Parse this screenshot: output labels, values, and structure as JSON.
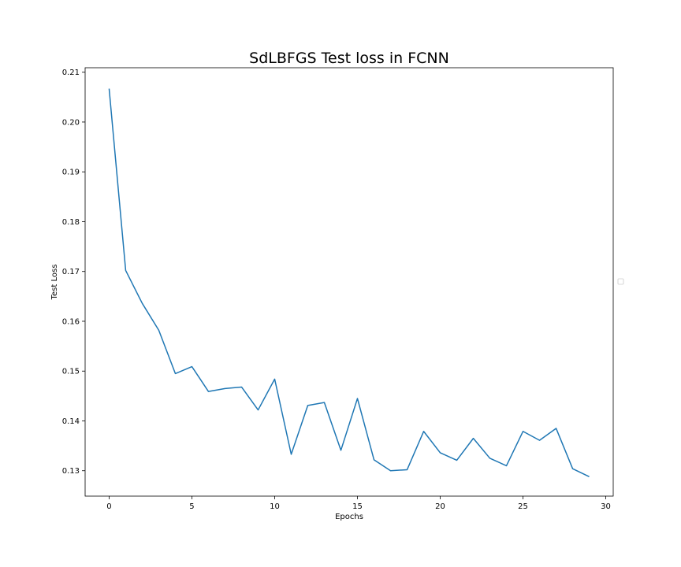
{
  "chart_data": {
    "type": "line",
    "title": "SdLBFGS Test loss in FCNN",
    "xlabel": "Epochs",
    "ylabel": "Test Loss",
    "xlim": [
      -1.45,
      30.45
    ],
    "ylim": [
      0.1249,
      0.2109
    ],
    "x_ticks": [
      0,
      5,
      10,
      15,
      20,
      25,
      30
    ],
    "x_tick_labels": [
      "0",
      "5",
      "10",
      "15",
      "20",
      "25",
      "30"
    ],
    "y_ticks": [
      0.13,
      0.14,
      0.15,
      0.16,
      0.17,
      0.18,
      0.19,
      0.2,
      0.21
    ],
    "y_tick_labels": [
      "0.13",
      "0.14",
      "0.15",
      "0.16",
      "0.17",
      "0.18",
      "0.19",
      "0.20",
      "0.21"
    ],
    "grid": false,
    "legend": "empty, center-right outside",
    "line_color": "#1f77b4",
    "series": [
      {
        "x": [
          0,
          1,
          2,
          3,
          4,
          5,
          6,
          7,
          8,
          9,
          10,
          11,
          12,
          13,
          14,
          15,
          16,
          17,
          18,
          19,
          20,
          21,
          22,
          23,
          24,
          25,
          26,
          27,
          28,
          29
        ],
        "values": [
          0.2067,
          0.1702,
          0.1636,
          0.1582,
          0.1495,
          0.1509,
          0.1459,
          0.1465,
          0.1468,
          0.1422,
          0.1484,
          0.1333,
          0.1431,
          0.1437,
          0.1341,
          0.1445,
          0.1322,
          0.13,
          0.1302,
          0.1379,
          0.1336,
          0.1321,
          0.1365,
          0.1325,
          0.131,
          0.1379,
          0.1361,
          0.1385,
          0.1304,
          0.1288
        ]
      }
    ]
  }
}
